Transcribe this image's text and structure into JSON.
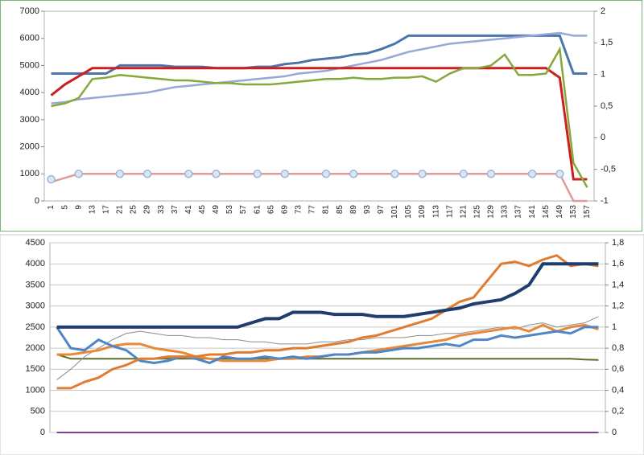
{
  "chart_data": [
    {
      "type": "line",
      "grid": false,
      "categories": [
        "1",
        "5",
        "9",
        "13",
        "17",
        "21",
        "25",
        "29",
        "33",
        "37",
        "41",
        "45",
        "49",
        "53",
        "57",
        "61",
        "65",
        "69",
        "73",
        "77",
        "81",
        "85",
        "89",
        "93",
        "97",
        "101",
        "105",
        "109",
        "113",
        "117",
        "121",
        "125",
        "129",
        "133",
        "137",
        "141",
        "145",
        "149",
        "153",
        "157"
      ],
      "ylim": [
        0,
        7000
      ],
      "yticks": [
        0,
        1000,
        2000,
        3000,
        4000,
        5000,
        6000,
        7000
      ],
      "y2lim": [
        -1,
        2
      ],
      "y2ticks": [
        -1,
        {
          "value": -0.5,
          "label": "-0,5"
        },
        0,
        {
          "value": 0.5,
          "label": "0,5"
        },
        1,
        {
          "value": 1.5,
          "label": "1,5"
        },
        2
      ],
      "series": [
        {
          "color": "#4a76ab",
          "values": [
            4700,
            4700,
            4700,
            4700,
            4700,
            5000,
            5000,
            5000,
            5000,
            4950,
            4950,
            4950,
            4900,
            4900,
            4900,
            4950,
            4950,
            5050,
            5100,
            5200,
            5250,
            5300,
            5400,
            5450,
            5600,
            5800,
            6100,
            6100,
            6100,
            6100,
            6100,
            6100,
            6100,
            6100,
            6100,
            6100,
            6100,
            6100,
            4700,
            4700
          ]
        },
        {
          "color": "#98a8d6",
          "values": [
            3600,
            3650,
            3750,
            3800,
            3850,
            3900,
            3950,
            4000,
            4100,
            4200,
            4250,
            4300,
            4350,
            4400,
            4450,
            4500,
            4550,
            4600,
            4700,
            4750,
            4800,
            4900,
            5000,
            5100,
            5200,
            5350,
            5500,
            5600,
            5700,
            5800,
            5850,
            5900,
            5950,
            6000,
            6050,
            6100,
            6150,
            6200,
            6100,
            6100
          ]
        },
        {
          "color": "#cc1f1f",
          "values": [
            3900,
            4300,
            4600,
            4900,
            4900,
            4900,
            4900,
            4900,
            4900,
            4900,
            4900,
            4900,
            4900,
            4900,
            4900,
            4900,
            4900,
            4900,
            4900,
            4900,
            4900,
            4900,
            4900,
            4900,
            4900,
            4900,
            4900,
            4900,
            4900,
            4900,
            4900,
            4900,
            4900,
            4900,
            4900,
            4900,
            4900,
            4550,
            800,
            800
          ]
        },
        {
          "color": "#86a83c",
          "values": [
            3500,
            3600,
            3800,
            4500,
            4550,
            4650,
            4600,
            4550,
            4500,
            4450,
            4450,
            4400,
            4350,
            4350,
            4300,
            4300,
            4300,
            4350,
            4400,
            4450,
            4500,
            4500,
            4550,
            4500,
            4500,
            4550,
            4550,
            4600,
            4400,
            4700,
            4900,
            4900,
            5000,
            5400,
            4650,
            4650,
            4700,
            5600,
            1400,
            500
          ]
        },
        {
          "color": "#e29a9a",
          "values": [
            700,
            850,
            1000,
            1000,
            1000,
            1000,
            1000,
            1000,
            1000,
            1000,
            1000,
            1000,
            1000,
            1000,
            1000,
            1000,
            1000,
            1000,
            1000,
            1000,
            1000,
            1000,
            1000,
            1000,
            1000,
            1000,
            1000,
            1000,
            1000,
            1000,
            1000,
            1000,
            1000,
            1000,
            1000,
            1000,
            1000,
            1000,
            0,
            0
          ]
        },
        {
          "color": "#9fb6d8",
          "style": "markers",
          "values": [
            800,
            null,
            1000,
            null,
            null,
            1000,
            null,
            1000,
            null,
            null,
            1000,
            null,
            1000,
            null,
            null,
            1000,
            null,
            1000,
            null,
            null,
            1000,
            null,
            1000,
            null,
            null,
            1000,
            null,
            1000,
            null,
            null,
            1000,
            null,
            1000,
            null,
            null,
            1000,
            null,
            1000,
            null,
            null
          ]
        }
      ]
    },
    {
      "type": "line",
      "grid": true,
      "ylim": [
        0,
        4500
      ],
      "yticks": [
        0,
        500,
        1000,
        1500,
        2000,
        2500,
        3000,
        3500,
        4000,
        4500
      ],
      "y2lim": [
        0,
        1.8
      ],
      "y2ticks": [
        0,
        {
          "value": 0.2,
          "label": "0,2"
        },
        {
          "value": 0.4,
          "label": "0,4"
        },
        {
          "value": 0.6,
          "label": "0,6"
        },
        {
          "value": 0.8,
          "label": "0,8"
        },
        1,
        {
          "value": 1.2,
          "label": "1,2"
        },
        {
          "value": 1.4,
          "label": "1,4"
        },
        {
          "value": 1.6,
          "label": "1,6"
        },
        {
          "value": 1.8,
          "label": "1,8"
        }
      ],
      "series": [
        {
          "color": "#7f3f98",
          "values": [
            0,
            0,
            0,
            0,
            0,
            0,
            0,
            0,
            0,
            0,
            0,
            0,
            0,
            0,
            0,
            0,
            0,
            0,
            0,
            0,
            0,
            0,
            0,
            0,
            0,
            0,
            0,
            0,
            0,
            0,
            0,
            0,
            0,
            0,
            0,
            0,
            0,
            0,
            0,
            0
          ]
        },
        {
          "color": "#5a6e2a",
          "values": [
            1850,
            1750,
            1750,
            1750,
            1750,
            1750,
            1750,
            1750,
            1750,
            1750,
            1750,
            1750,
            1750,
            1750,
            1750,
            1750,
            1750,
            1750,
            1750,
            1750,
            1750,
            1750,
            1750,
            1750,
            1750,
            1750,
            1750,
            1750,
            1750,
            1750,
            1750,
            1750,
            1750,
            1750,
            1750,
            1750,
            1750,
            1750,
            1730,
            1720
          ]
        },
        {
          "color": "#8c8c8c",
          "values": [
            1250,
            1500,
            1800,
            2000,
            2200,
            2350,
            2400,
            2350,
            2300,
            2300,
            2250,
            2250,
            2200,
            2200,
            2150,
            2150,
            2100,
            2100,
            2100,
            2150,
            2150,
            2200,
            2200,
            2250,
            2250,
            2250,
            2300,
            2300,
            2350,
            2350,
            2400,
            2450,
            2500,
            2450,
            2550,
            2600,
            2500,
            2550,
            2600,
            2750
          ]
        },
        {
          "color": "#e8893a",
          "values": [
            1850,
            1850,
            1900,
            1950,
            2050,
            2100,
            2100,
            2000,
            1950,
            1900,
            1800,
            1750,
            1700,
            1700,
            1700,
            1700,
            1750,
            1750,
            1800,
            1800,
            1850,
            1850,
            1900,
            1950,
            2000,
            2050,
            2100,
            2150,
            2200,
            2300,
            2350,
            2400,
            2450,
            2500,
            2400,
            2550,
            2400,
            2500,
            2550,
            2450
          ]
        },
        {
          "color": "#4f86c6",
          "values": [
            2500,
            2000,
            1950,
            2200,
            2050,
            1950,
            1700,
            1650,
            1700,
            1800,
            1750,
            1650,
            1800,
            1750,
            1750,
            1800,
            1750,
            1800,
            1750,
            1800,
            1850,
            1850,
            1900,
            1900,
            1950,
            2000,
            2000,
            2050,
            2100,
            2050,
            2200,
            2200,
            2300,
            2250,
            2300,
            2350,
            2400,
            2350,
            2500,
            2500
          ]
        },
        {
          "color": "#e07b30",
          "values": [
            1050,
            1050,
            1200,
            1300,
            1500,
            1600,
            1750,
            1750,
            1800,
            1800,
            1800,
            1850,
            1850,
            1900,
            1900,
            1950,
            1950,
            2000,
            2000,
            2050,
            2100,
            2150,
            2250,
            2300,
            2400,
            2500,
            2600,
            2700,
            2900,
            3100,
            3200,
            3600,
            4000,
            4050,
            3950,
            4100,
            4200,
            3950,
            4000,
            3950
          ]
        },
        {
          "color": "#1f3e6e",
          "values": [
            2500,
            2500,
            2500,
            2500,
            2500,
            2500,
            2500,
            2500,
            2500,
            2500,
            2500,
            2500,
            2500,
            2500,
            2600,
            2700,
            2700,
            2850,
            2850,
            2850,
            2800,
            2800,
            2800,
            2750,
            2750,
            2750,
            2800,
            2850,
            2900,
            2950,
            3050,
            3100,
            3150,
            3300,
            3500,
            4000,
            4000,
            4000,
            4000,
            4000
          ]
        }
      ]
    }
  ]
}
